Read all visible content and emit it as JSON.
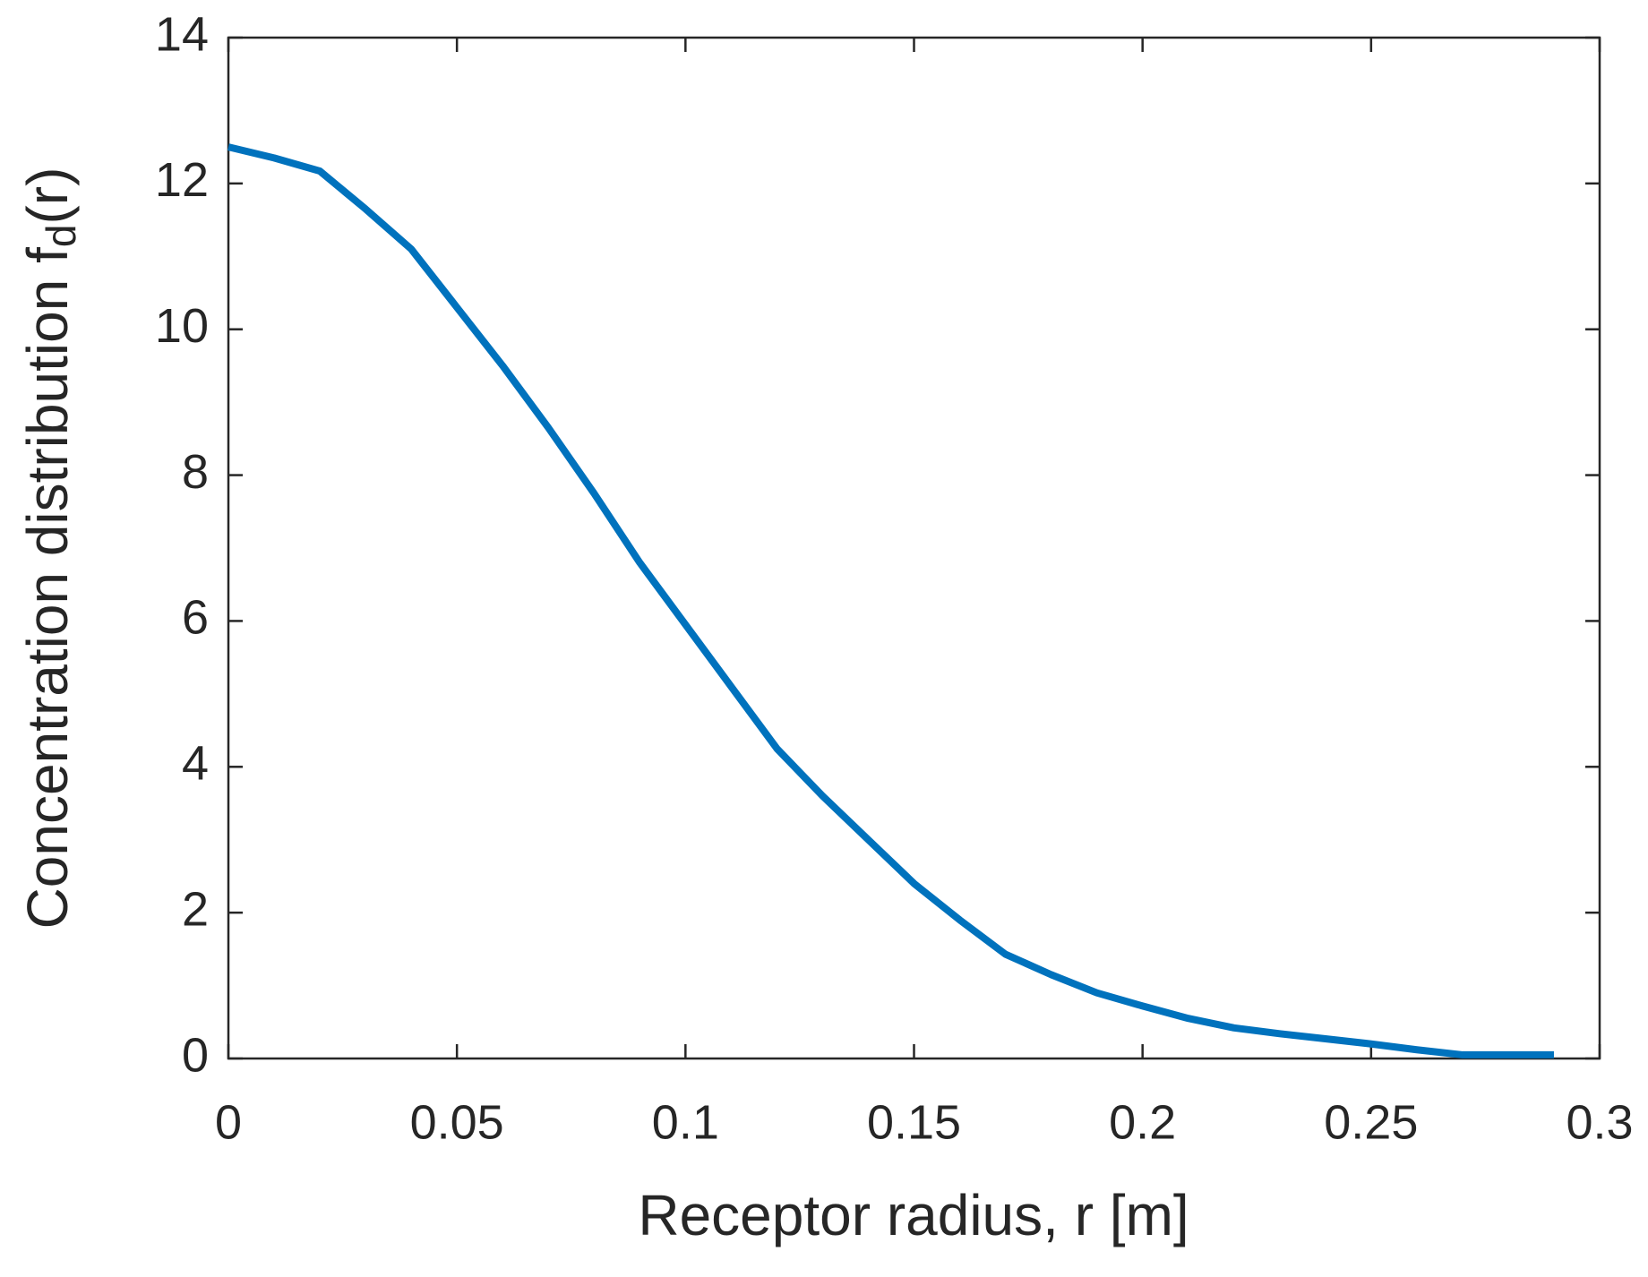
{
  "chart_data": {
    "type": "line",
    "x_label": "Receptor radius, r [m]",
    "y_label": [
      "Concentration distribution f",
      "d",
      "(r)"
    ],
    "x": [
      0,
      0.01,
      0.02,
      0.03,
      0.04,
      0.05,
      0.06,
      0.07,
      0.08,
      0.09,
      0.1,
      0.11,
      0.12,
      0.13,
      0.14,
      0.15,
      0.16,
      0.17,
      0.18,
      0.19,
      0.2,
      0.21,
      0.22,
      0.23,
      0.24,
      0.25,
      0.26,
      0.27,
      0.28,
      0.29
    ],
    "series": [
      {
        "color": "#0072bd",
        "values": [
          12.5,
          12.35,
          12.17,
          11.65,
          11.1,
          10.3,
          9.5,
          8.65,
          7.75,
          6.8,
          5.95,
          5.1,
          4.25,
          3.6,
          3.0,
          2.4,
          1.9,
          1.43,
          1.15,
          0.9,
          0.72,
          0.55,
          0.42,
          0.34,
          0.27,
          0.2,
          0.12,
          0.05,
          0.05,
          0.05
        ]
      }
    ],
    "xlim": [
      0,
      0.3
    ],
    "xticks": [
      0,
      0.05,
      0.1,
      0.15,
      0.2,
      0.25,
      0.3
    ],
    "ylim": [
      0,
      14
    ],
    "yticks": [
      0,
      2,
      4,
      6,
      8,
      10,
      12,
      14
    ],
    "grid": false
  }
}
